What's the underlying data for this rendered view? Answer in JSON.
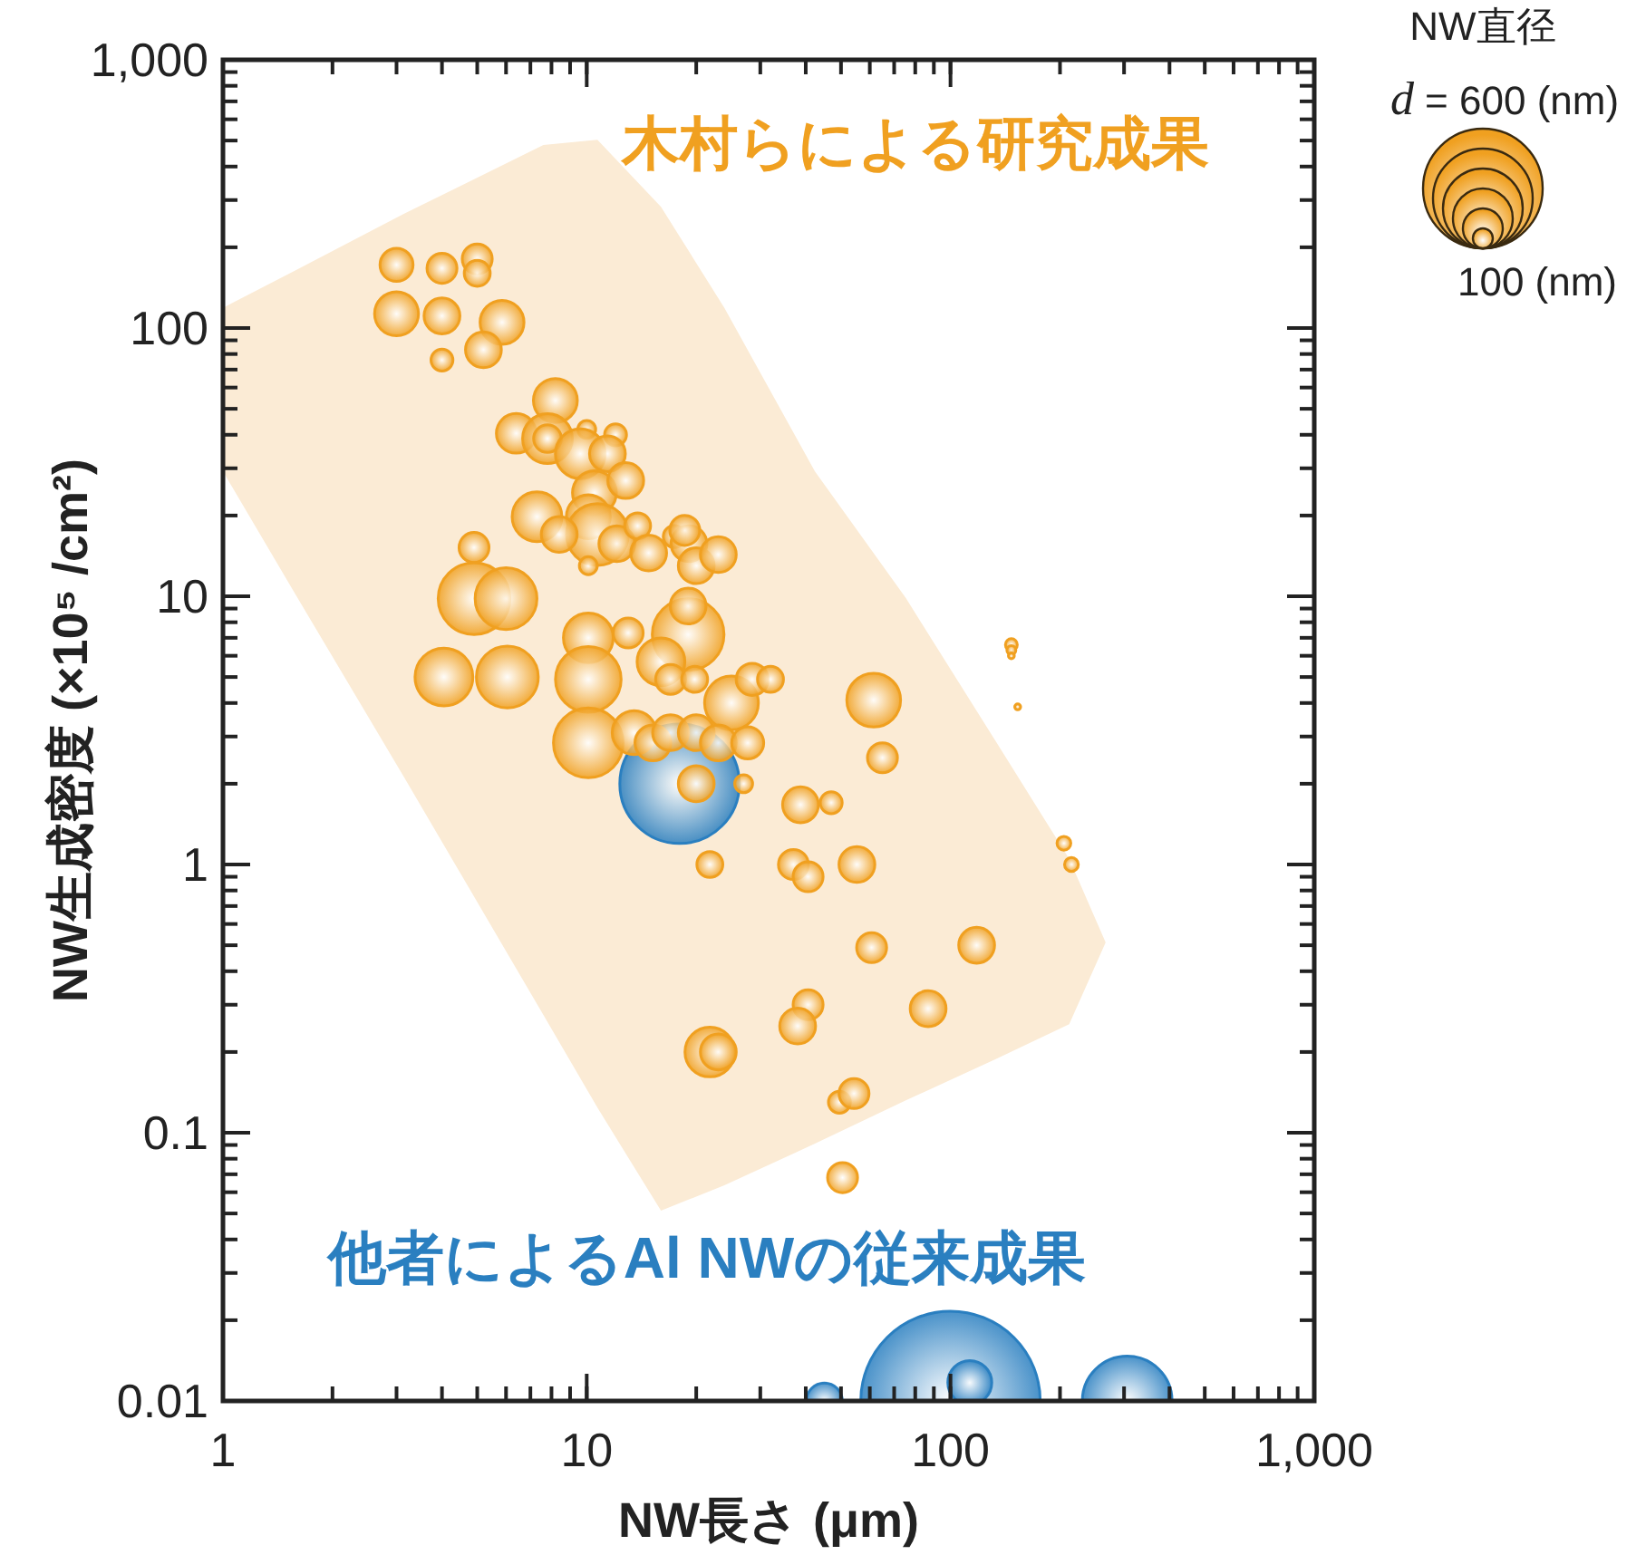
{
  "chart_data": {
    "type": "bubble",
    "xlabel": "NW長さ (μm)",
    "ylabel": "NW生成密度 (×10⁵ /cm²)",
    "legend_title": "NW直径",
    "log": "xy",
    "grid": false,
    "legend": "top right",
    "annotations": [
      "d = 600 (nm)",
      "100 (nm)"
    ],
    "xlim": [
      1,
      1000
    ],
    "xticks": [
      1,
      10,
      100,
      {
        "value": 1000,
        "label": "1,000"
      }
    ],
    "ylim": [
      0.01,
      1000
    ],
    "yticks": [
      0.01,
      0.1,
      1,
      10,
      100,
      {
        "value": 1000,
        "label": "1,000"
      }
    ],
    "series": [
      {
        "name": "他者によるAl NWの従来成果",
        "color": "#2a7fc0",
        "x": [
          100,
          113,
          45,
          306,
          18
        ],
        "values": [
          0.01,
          0.0117,
          0.01,
          0.01,
          2.0
        ],
        "sizes": [
          1,
          0.06,
          0.04,
          0.25,
          0.444
        ]
      },
      {
        "name": "木村らによる研究成果",
        "color": "#f0a020",
        "x": [
          3.0,
          4.0,
          5.0,
          5.0,
          3.0,
          4.0,
          5.85,
          5.2,
          4.0,
          8.2,
          6.4,
          7.8,
          7.8,
          10,
          9.6,
          12,
          11.4,
          10.5,
          10.1,
          10.7,
          7.3,
          8.4,
          12.8,
          12.1,
          13.8,
          14.8,
          17.4,
          19.1,
          18.6,
          20,
          23,
          10.1,
          4.9,
          4.9,
          6.0,
          4.05,
          6.05,
          10.1,
          10.1,
          13,
          19,
          19,
          16,
          17,
          19.8,
          25,
          28.5,
          32,
          10.1,
          13.5,
          15.2,
          17,
          20,
          23,
          27.7,
          20,
          27,
          21.8,
          61.5,
          65,
          38.7,
          47,
          37,
          40.6,
          55.3,
          60.7,
          118,
          86.8,
          40.6,
          38,
          21.8,
          23,
          49.5,
          54.3,
          50.5,
          147,
          147,
          147,
          153,
          205,
          215
        ],
        "values": [
          172,
          167,
          181,
          160,
          113,
          111,
          105,
          83,
          76,
          53.7,
          40.5,
          38.7,
          38.7,
          41.9,
          34,
          40,
          34,
          24.3,
          19.8,
          17,
          19.8,
          17,
          27,
          15.7,
          18.3,
          14.5,
          16.7,
          15.7,
          17.6,
          13,
          14.3,
          13,
          15.2,
          9.8,
          9.8,
          5.0,
          5.0,
          7.0,
          4.9,
          7.3,
          7.2,
          9.2,
          5.7,
          4.9,
          4.9,
          4.0,
          4.9,
          4.9,
          2.84,
          3.1,
          2.84,
          3.1,
          3.1,
          2.84,
          2.84,
          2.0,
          2.0,
          1.0,
          4.1,
          2.5,
          1.67,
          1.7,
          1.0,
          0.9,
          1.0,
          0.49,
          0.5,
          0.29,
          0.3,
          0.25,
          0.2,
          0.2,
          0.13,
          0.14,
          0.068,
          6.6,
          6.3,
          6.0,
          3.87,
          1.2,
          1.0
        ],
        "sizes": [
          0.034,
          0.028,
          0.028,
          0.021,
          0.06,
          0.04,
          0.06,
          0.04,
          0.015,
          0.06,
          0.049,
          0.077,
          0.024,
          0.01,
          0.077,
          0.015,
          0.04,
          0.06,
          0.06,
          0.119,
          0.077,
          0.04,
          0.04,
          0.04,
          0.021,
          0.04,
          0.015,
          0.04,
          0.028,
          0.04,
          0.04,
          0.01,
          0.028,
          0.16,
          0.119,
          0.104,
          0.119,
          0.077,
          0.134,
          0.028,
          0.16,
          0.04,
          0.071,
          0.028,
          0.021,
          0.09,
          0.032,
          0.021,
          0.151,
          0.06,
          0.04,
          0.04,
          0.04,
          0.04,
          0.032,
          0.04,
          0.01,
          0.021,
          0.09,
          0.028,
          0.04,
          0.015,
          0.028,
          0.028,
          0.04,
          0.028,
          0.04,
          0.04,
          0.028,
          0.04,
          0.077,
          0.04,
          0.015,
          0.028,
          0.028,
          0.0044,
          0.0025,
          0.0011,
          0.0011,
          0.006,
          0.006
        ]
      },
      {
        "type": "area",
        "color": "#fbebd5",
        "x": [
          1,
          1.58,
          3.15,
          7.6,
          10.7,
          16,
          23.9,
          42.4,
          75.4,
          134,
          212,
          267,
          212,
          134,
          75.4,
          42.4,
          23.9,
          16,
          10.7,
          7.6,
          3.15,
          1.58,
          1
        ],
        "values": [
          119,
          164,
          267,
          481,
          503,
          283,
          119,
          29.2,
          9.84,
          2.84,
          1.05,
          0.512,
          0.254,
          0.189,
          0.132,
          0.091,
          0.0637,
          0.0512,
          0.124,
          0.275,
          2.11,
          10.2,
          29.2
        ]
      }
    ]
  }
}
